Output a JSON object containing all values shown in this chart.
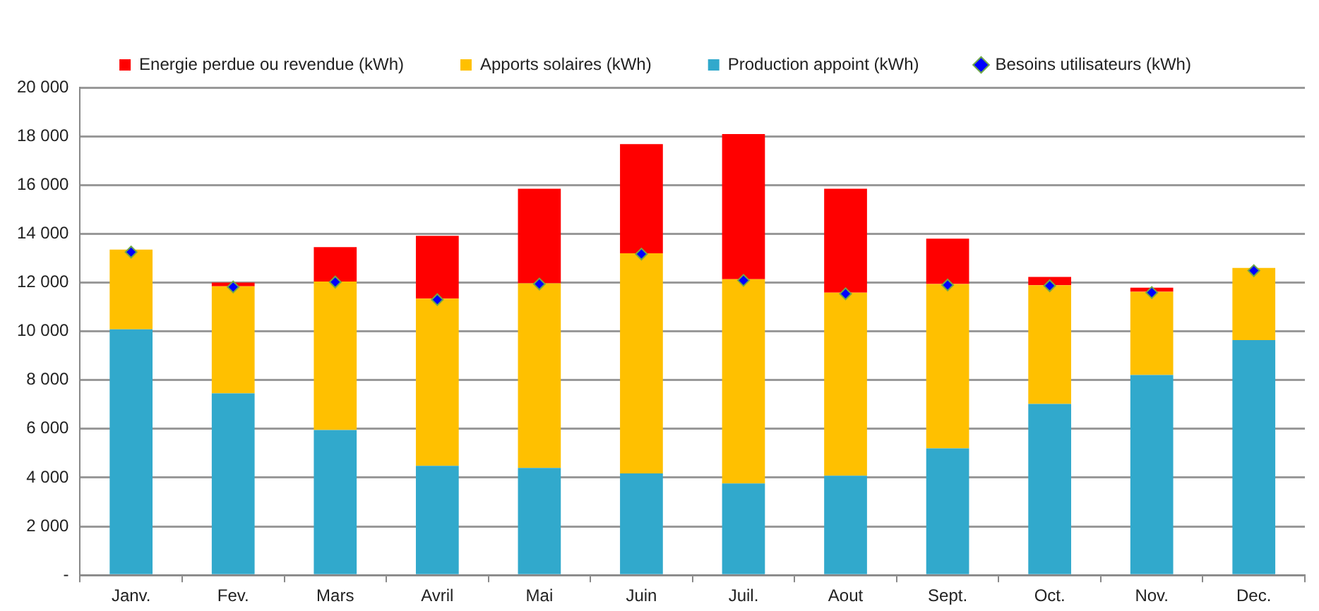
{
  "chart_data": {
    "type": "bar",
    "stacked": true,
    "categories": [
      "Janv.",
      "Fev.",
      "Mars",
      "Avril",
      "Mai",
      "Juin",
      "Juil.",
      "Aout",
      "Sept.",
      "Oct.",
      "Nov.",
      "Dec."
    ],
    "series": [
      {
        "name": "Production appoint (kWh)",
        "color": "#31a9cc",
        "values": [
          10080,
          7460,
          5950,
          4480,
          4400,
          4170,
          3760,
          4080,
          5200,
          7020,
          8210,
          9640
        ]
      },
      {
        "name": "Apports solaires (kWh)",
        "color": "#ffc000",
        "values": [
          3270,
          4390,
          6090,
          6860,
          7570,
          9030,
          8380,
          7510,
          6740,
          4870,
          3410,
          2960
        ]
      },
      {
        "name": "Energie perdue ou revendue (kWh)",
        "color": "#ff0000",
        "values": [
          0,
          150,
          1410,
          2580,
          3880,
          4480,
          5950,
          4260,
          1860,
          340,
          170,
          0
        ]
      },
      {
        "name": "Besoins utilisateurs (kWh)",
        "type": "scatter",
        "color": "#0000ff",
        "marker": "diamond",
        "x": [
          "Janv.",
          "Fev.",
          "Mars",
          "Avril",
          "Mai",
          "Juin",
          "Juil.",
          "Aout",
          "Sept.",
          "Oct.",
          "Nov.",
          "Dec."
        ],
        "values": [
          13250,
          11820,
          12020,
          11300,
          11940,
          13170,
          12090,
          11540,
          11900,
          11870,
          11590,
          12490
        ]
      }
    ],
    "ylim": [
      0,
      20000
    ],
    "yticks": [
      {
        "value": 0,
        "label": "-"
      },
      {
        "value": 2000,
        "label": "2 000"
      },
      {
        "value": 4000,
        "label": "4 000"
      },
      {
        "value": 6000,
        "label": "6 000"
      },
      {
        "value": 8000,
        "label": "8 000"
      },
      {
        "value": 10000,
        "label": "10 000"
      },
      {
        "value": 12000,
        "label": "12 000"
      },
      {
        "value": 14000,
        "label": "14 000"
      },
      {
        "value": 16000,
        "label": "16 000"
      },
      {
        "value": 18000,
        "label": "18 000"
      },
      {
        "value": 20000,
        "label": "20 000"
      }
    ],
    "grid": "y",
    "legend": "top"
  }
}
